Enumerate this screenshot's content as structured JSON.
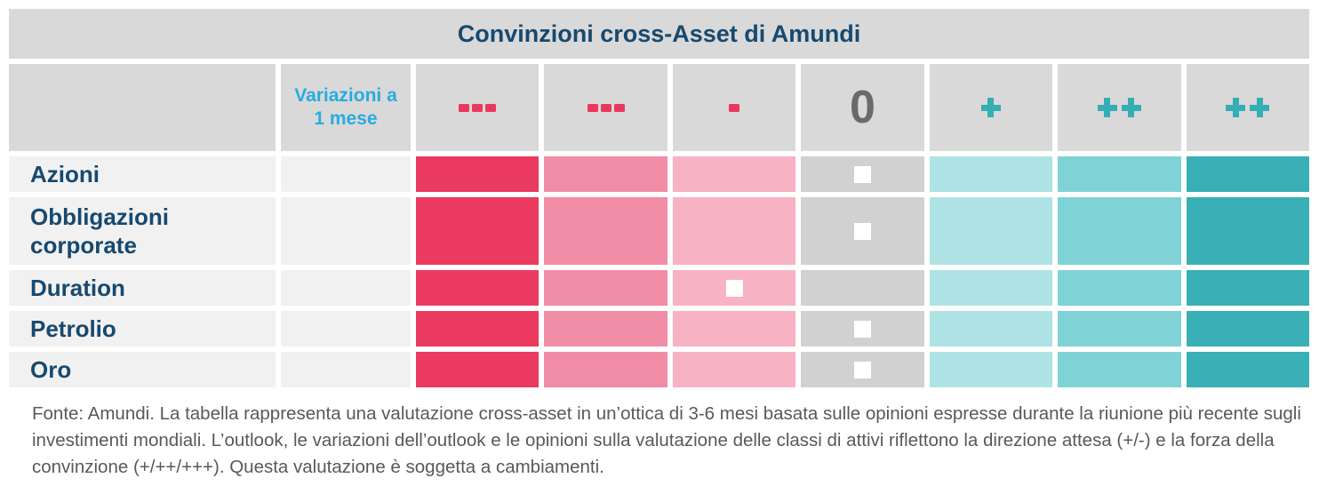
{
  "chart_data": {
    "type": "table",
    "title": "Convinzioni cross-Asset di Amundi",
    "change_column_header": "Variazioni a 1 mese",
    "scale": [
      {
        "symbol": "---",
        "cell_color": "#ea3a60"
      },
      {
        "symbol": "---",
        "cell_color": "#f18ca6"
      },
      {
        "symbol": "-",
        "cell_color": "#f7b2c4"
      },
      {
        "symbol": "0",
        "cell_color": "#d2d1d1"
      },
      {
        "symbol": "+",
        "cell_color": "#ade3e4"
      },
      {
        "symbol": "++",
        "cell_color": "#7fd2d6"
      },
      {
        "symbol": "++",
        "cell_color": "#38b0b5"
      }
    ],
    "rows": [
      {
        "label": "Azioni",
        "change_1m": "",
        "conviction": "0",
        "marker_index": 3
      },
      {
        "label": "Obbligazioni corporate",
        "change_1m": "",
        "conviction": "0",
        "marker_index": 3
      },
      {
        "label": "Duration",
        "change_1m": "",
        "conviction": "-",
        "marker_index": 2
      },
      {
        "label": "Petrolio",
        "change_1m": "",
        "conviction": "0",
        "marker_index": 3
      },
      {
        "label": "Oro",
        "change_1m": "",
        "conviction": "0",
        "marker_index": 3
      }
    ],
    "legend_position": "none",
    "grid": false
  },
  "colors": {
    "title_text": "#17496f",
    "row_label_text": "#17496f",
    "change_header_text": "#29abe2",
    "header_bg": "#d9d9d9",
    "label_bg": "#f1f1f1",
    "minus_symbol": "#e8385e",
    "zero_symbol": "#6a6a6a",
    "plus_symbol": "#35aeb4",
    "marker": "#ffffff"
  },
  "footer": {
    "text": "Fonte: Amundi. La tabella rappresenta una valutazione cross-asset in un’ottica di 3-6 mesi basata sulle opinioni espresse durante la riunione più recente sugli investimenti mondiali. L’outlook, le variazioni dell’outlook e le opinioni sulla valutazione delle classi di attivi riflettono la direzione attesa (+/-) e la forza della convinzione (+/++/+++). Questa valutazione è soggetta a cambiamenti."
  }
}
